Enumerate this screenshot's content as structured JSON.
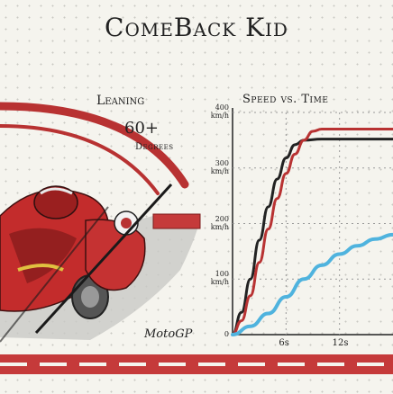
{
  "title": "ComeBack Kid",
  "leaning": {
    "label": "Leaning",
    "value": "60+",
    "unit": "Degrees"
  },
  "logo_text": "MotoGP",
  "colors": {
    "paper": "#f5f4ee",
    "accent_red": "#b83232",
    "line_black": "#222222",
    "line_blue": "#4fb3de"
  },
  "chart_data": {
    "type": "line",
    "title": "Speed vs. Time",
    "xlabel": "",
    "ylabel": "",
    "y_ticks": [
      {
        "value": 400,
        "label": "400",
        "unit": "km/h"
      },
      {
        "value": 300,
        "label": "300",
        "unit": "km/h"
      },
      {
        "value": 200,
        "label": "200",
        "unit": "km/h"
      },
      {
        "value": 100,
        "label": "100",
        "unit": "km/h"
      },
      {
        "value": 0,
        "label": "0",
        "unit": ""
      }
    ],
    "x_ticks": [
      {
        "value": 6,
        "label": "6s"
      },
      {
        "value": 12,
        "label": "12s"
      }
    ],
    "ylim": [
      0,
      400
    ],
    "xlim": [
      0,
      18
    ],
    "grid": true,
    "series": [
      {
        "color": "#222222",
        "x": [
          0,
          1,
          2,
          3,
          4,
          5,
          6,
          7,
          8,
          10,
          12,
          18
        ],
        "y": [
          0,
          40,
          100,
          170,
          230,
          280,
          318,
          342,
          350,
          352,
          352,
          352
        ]
      },
      {
        "color": "#b83232",
        "x": [
          0,
          1,
          2,
          3,
          4,
          5,
          6,
          7,
          8,
          9,
          10,
          12,
          18
        ],
        "y": [
          0,
          25,
          70,
          130,
          190,
          245,
          290,
          325,
          350,
          366,
          370,
          370,
          370
        ]
      },
      {
        "color": "#4fb3de",
        "x": [
          0,
          2,
          4,
          6,
          8,
          10,
          12,
          14,
          16,
          18
        ],
        "y": [
          0,
          15,
          38,
          68,
          100,
          125,
          145,
          160,
          172,
          180
        ]
      }
    ]
  }
}
